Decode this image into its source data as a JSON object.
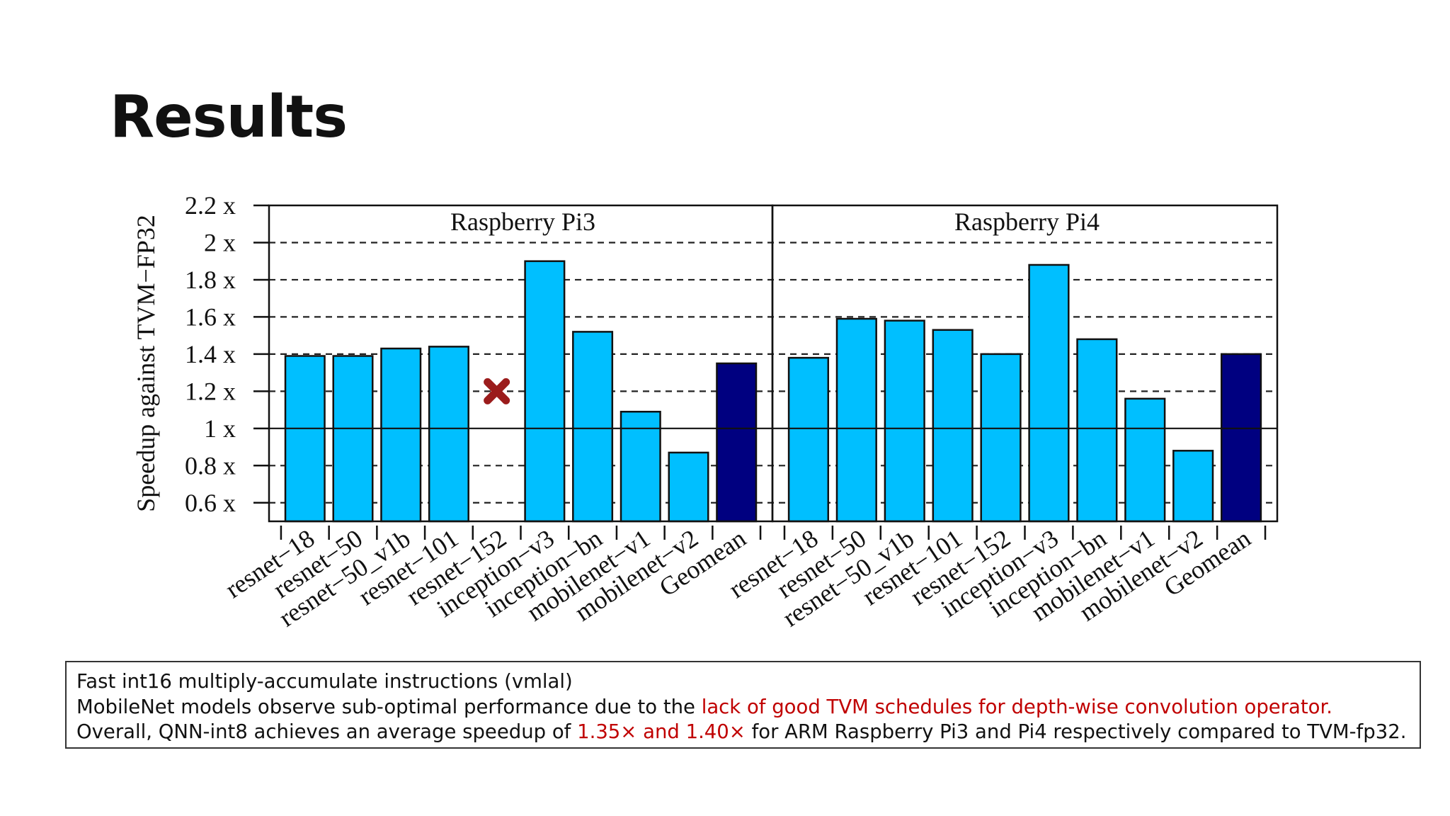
{
  "slide": {
    "title": "Results"
  },
  "chart_data": {
    "type": "bar",
    "ylabel": "Speedup against TVM−FP32",
    "ylim": [
      0.5,
      2.2
    ],
    "yticks": [
      0.6,
      0.8,
      1,
      1.2,
      1.4,
      1.6,
      1.8,
      2,
      2.2
    ],
    "ytick_labels": [
      "0.6 x",
      "0.8 x",
      "1 x",
      "1.2 x",
      "1.4 x",
      "1.6 x",
      "1.8 x",
      "2 x",
      "2.2 x"
    ],
    "grid": "dashed horizontal",
    "reference_line": 1,
    "colors": {
      "model": "#00BFFF",
      "geomean": "#000080",
      "missing_marker": "#9b1c1c"
    },
    "categories": [
      "resnet−18",
      "resnet−50",
      "resnet−50_v1b",
      "resnet−101",
      "resnet−152",
      "inception−v3",
      "inception−bn",
      "mobilenet−v1",
      "mobilenet−v2",
      "Geomean"
    ],
    "panels": [
      {
        "title": "Raspberry Pi3",
        "values": [
          1.39,
          1.39,
          1.43,
          1.44,
          null,
          1.9,
          1.52,
          1.09,
          0.87,
          1.35
        ],
        "missing_marker_value": 1.2
      },
      {
        "title": "Raspberry Pi4",
        "values": [
          1.38,
          1.59,
          1.58,
          1.53,
          1.4,
          1.88,
          1.48,
          1.16,
          0.88,
          1.4
        ],
        "missing_marker_value": null
      }
    ]
  },
  "notes": {
    "line1": "Fast int16 multiply-accumulate instructions (vmlal)",
    "line2_prefix": "MobileNet models observe sub-optimal performance due to the ",
    "line2_highlight": "lack of good TVM schedules for depth-wise convolution operator.",
    "line3_prefix": "Overall, QNN-int8 achieves an average speedup of ",
    "line3_highlight": "1.35× and 1.40×",
    "line3_suffix": " for ARM Raspberry Pi3 and Pi4 respectively compared to TVM-fp32."
  }
}
